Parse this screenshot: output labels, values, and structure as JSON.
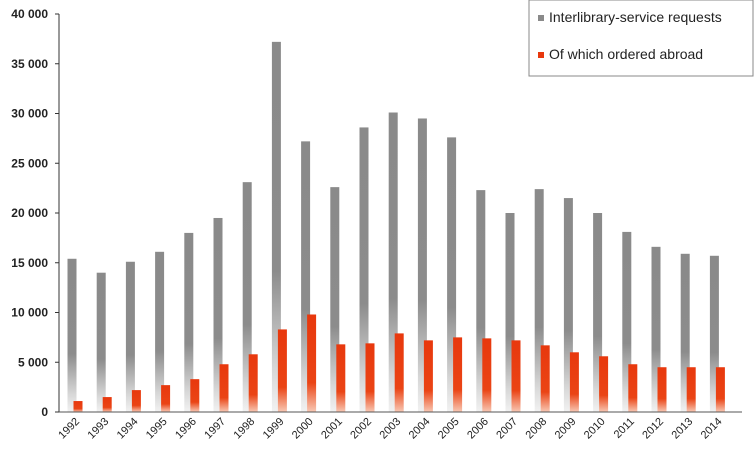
{
  "chart_data": {
    "type": "bar",
    "categories": [
      "1992",
      "1993",
      "1994",
      "1995",
      "1996",
      "1997",
      "1998",
      "1999",
      "2000",
      "2001",
      "2002",
      "2003",
      "2004",
      "2005",
      "2006",
      "2007",
      "2008",
      "2009",
      "2010",
      "2011",
      "2012",
      "2013",
      "2014"
    ],
    "series": [
      {
        "name": "Interlibrary-service requests",
        "color": "#8a8a8a",
        "values": [
          15400,
          14000,
          15100,
          16100,
          18000,
          19500,
          23100,
          37200,
          27200,
          22600,
          28600,
          30100,
          29500,
          27600,
          22300,
          20000,
          22400,
          21500,
          20000,
          18100,
          16600,
          15900,
          15700
        ]
      },
      {
        "name": "Of which ordered abroad",
        "color": "#e8380d",
        "values": [
          1100,
          1500,
          2200,
          2700,
          3300,
          4800,
          5800,
          8300,
          9800,
          6800,
          6900,
          7900,
          7200,
          7500,
          7400,
          7200,
          6700,
          6000,
          5600,
          4800,
          4500,
          4500,
          4500
        ]
      }
    ],
    "yticks": [
      "0",
      "5 000",
      "10 000",
      "15 000",
      "20 000",
      "25 000",
      "30 000",
      "35 000",
      "40 000"
    ],
    "ylim": [
      0,
      40000
    ],
    "legend_position": "top-right",
    "grid": false
  }
}
